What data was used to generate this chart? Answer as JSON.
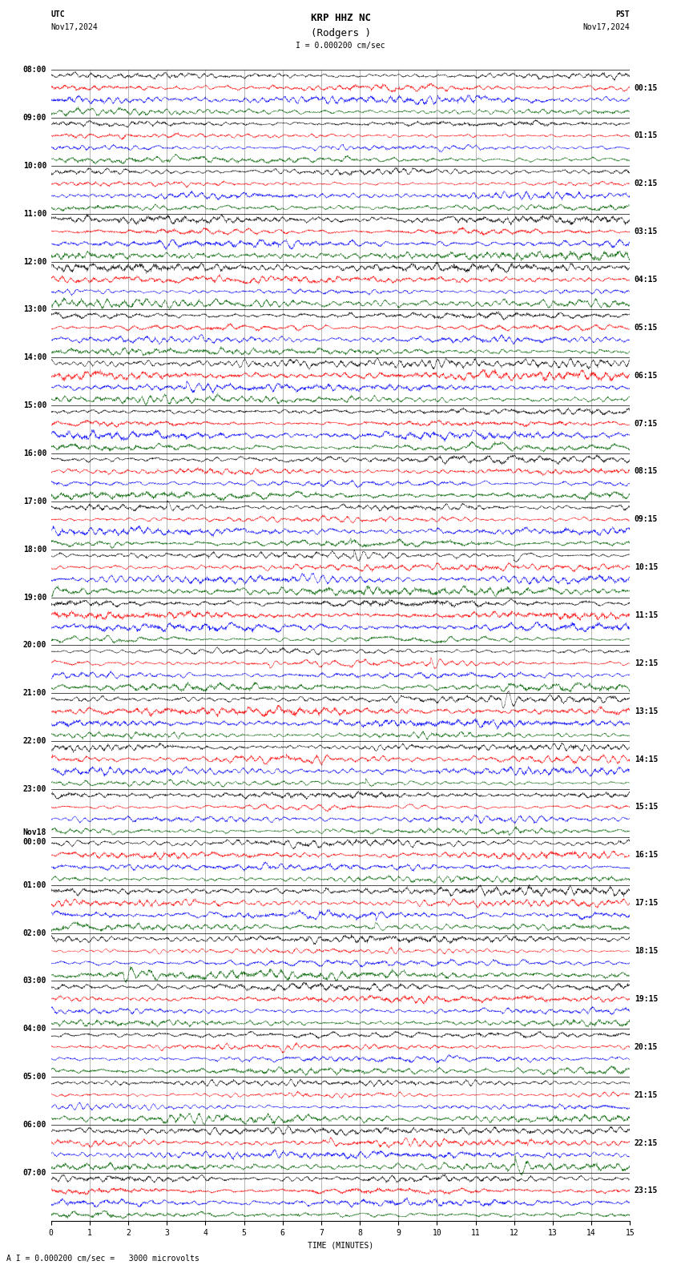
{
  "title_line1": "KRP HHZ NC",
  "title_line2": "(Rodgers )",
  "scale_label": "I = 0.000200 cm/sec",
  "utc_label": "UTC",
  "utc_date": "Nov17,2024",
  "pst_label": "PST",
  "pst_date": "Nov17,2024",
  "xlabel": "TIME (MINUTES)",
  "bottom_label": "A I = 0.000200 cm/sec =   3000 microvolts",
  "left_times_utc": [
    "08:00",
    "09:00",
    "10:00",
    "11:00",
    "12:00",
    "13:00",
    "14:00",
    "15:00",
    "16:00",
    "17:00",
    "18:00",
    "19:00",
    "20:00",
    "21:00",
    "22:00",
    "23:00",
    "Nov18\n00:00",
    "01:00",
    "02:00",
    "03:00",
    "04:00",
    "05:00",
    "06:00",
    "07:00"
  ],
  "right_times_pst": [
    "00:15",
    "01:15",
    "02:15",
    "03:15",
    "04:15",
    "05:15",
    "06:15",
    "07:15",
    "08:15",
    "09:15",
    "10:15",
    "11:15",
    "12:15",
    "13:15",
    "14:15",
    "15:15",
    "16:15",
    "17:15",
    "18:15",
    "19:15",
    "20:15",
    "21:15",
    "22:15",
    "23:15"
  ],
  "xticks": [
    0,
    1,
    2,
    3,
    4,
    5,
    6,
    7,
    8,
    9,
    10,
    11,
    12,
    13,
    14,
    15
  ],
  "colors": [
    "black",
    "red",
    "blue",
    "darkgreen"
  ],
  "bg_color": "white",
  "n_hours": 24,
  "traces_per_hour": 4,
  "minutes_per_trace": 15,
  "amplitude_scale": 0.55,
  "noise_seed": 42,
  "fig_width": 8.5,
  "fig_height": 15.84,
  "title_fontsize": 9,
  "label_fontsize": 7,
  "tick_fontsize": 7,
  "axis_label_fontsize": 7
}
